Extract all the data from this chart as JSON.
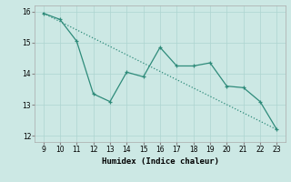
{
  "x": [
    9,
    10,
    11,
    12,
    13,
    14,
    15,
    16,
    17,
    18,
    19,
    20,
    21,
    22,
    23
  ],
  "y_line": [
    15.95,
    15.75,
    15.05,
    13.35,
    13.1,
    14.05,
    13.9,
    14.85,
    14.25,
    14.25,
    14.35,
    13.6,
    13.55,
    13.1,
    12.2
  ],
  "xlabel": "Humidex (Indice chaleur)",
  "xlim": [
    8.5,
    23.5
  ],
  "ylim": [
    11.8,
    16.2
  ],
  "yticks": [
    12,
    13,
    14,
    15,
    16
  ],
  "xticks": [
    9,
    10,
    11,
    12,
    13,
    14,
    15,
    16,
    17,
    18,
    19,
    20,
    21,
    22,
    23
  ],
  "line_color": "#2e8b7a",
  "bg_color": "#cce8e4",
  "grid_color": "#add5d0",
  "trend_x": [
    9,
    23
  ],
  "trend_y": [
    15.95,
    12.2
  ]
}
